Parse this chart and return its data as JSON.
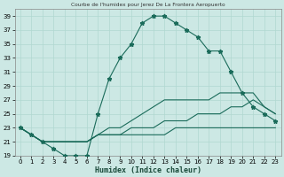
{
  "title": "Courbe de l'humidex pour Jerez De La Frontera Aeropuerto",
  "xlabel": "Humidex (Indice chaleur)",
  "bg_color": "#cce8e4",
  "grid_color": "#b0d8d0",
  "line_color": "#1a6b5a",
  "x": [
    0,
    1,
    2,
    3,
    4,
    5,
    6,
    7,
    8,
    9,
    10,
    11,
    12,
    13,
    14,
    15,
    16,
    17,
    18,
    19,
    20,
    21,
    22,
    23
  ],
  "line1": [
    23,
    22,
    21,
    20,
    19,
    19,
    19,
    25,
    30,
    33,
    35,
    38,
    39,
    39,
    38,
    37,
    36,
    34,
    34,
    31,
    28,
    26,
    25,
    24
  ],
  "line2": [
    23,
    22,
    21,
    21,
    21,
    21,
    21,
    22,
    23,
    23,
    24,
    25,
    26,
    27,
    27,
    27,
    27,
    27,
    28,
    28,
    28,
    28,
    26,
    25
  ],
  "line3": [
    23,
    22,
    21,
    21,
    21,
    21,
    21,
    22,
    22,
    22,
    23,
    23,
    23,
    24,
    24,
    24,
    25,
    25,
    25,
    26,
    26,
    27,
    26,
    25
  ],
  "line4": [
    23,
    22,
    21,
    21,
    21,
    21,
    21,
    22,
    22,
    22,
    22,
    22,
    22,
    22,
    23,
    23,
    23,
    23,
    23,
    23,
    23,
    23,
    23,
    23
  ],
  "ylim": [
    19,
    40
  ],
  "xlim": [
    -0.5,
    23.5
  ],
  "yticks": [
    19,
    21,
    23,
    25,
    27,
    29,
    31,
    33,
    35,
    37,
    39
  ],
  "xticks": [
    0,
    1,
    2,
    3,
    4,
    5,
    6,
    7,
    8,
    9,
    10,
    11,
    12,
    13,
    14,
    15,
    16,
    17,
    18,
    19,
    20,
    21,
    22,
    23
  ],
  "xtick_labels": [
    "0",
    "1",
    "2",
    "3",
    "4",
    "5",
    "6",
    "7",
    "8",
    "9",
    "10",
    "11",
    "12",
    "13",
    "14",
    "15",
    "16",
    "17",
    "18",
    "19",
    "20",
    "21",
    "22",
    "23"
  ]
}
